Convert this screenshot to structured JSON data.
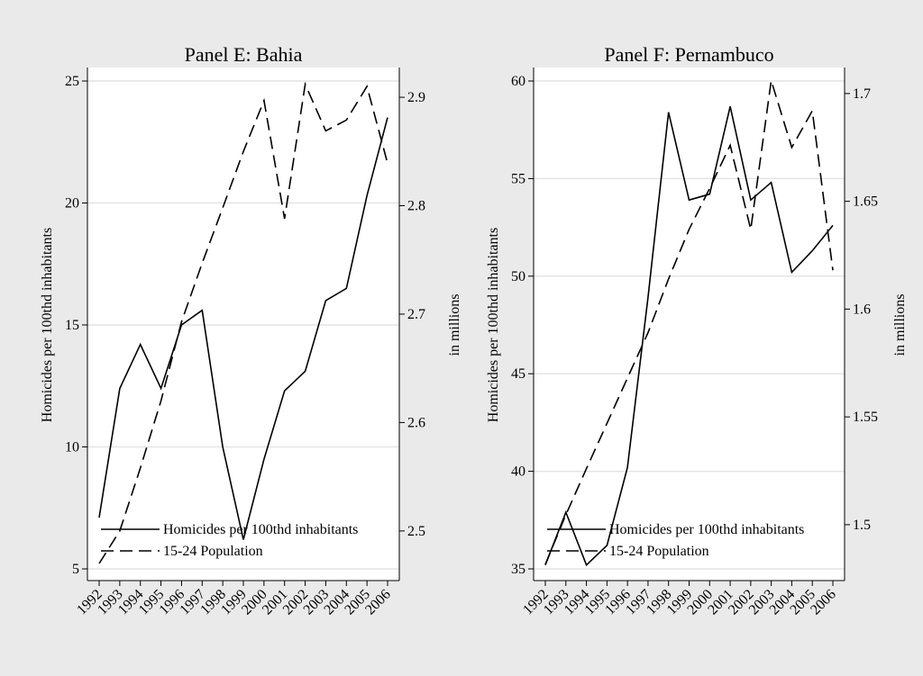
{
  "chart_data": [
    {
      "type": "line",
      "title": "Panel E: Bahia",
      "ylabel": "Homicides per 100thd inhabitants",
      "y2label": "in millions",
      "categories": [
        "1992",
        "1993",
        "1994",
        "1995",
        "1996",
        "1997",
        "1998",
        "1999",
        "2000",
        "2001",
        "2002",
        "2003",
        "2004",
        "2005",
        "2006"
      ],
      "series": [
        {
          "name": "Homicides per 100thd inhabitants",
          "color": "#000000",
          "line_style": "solid",
          "values": [
            7.1,
            12.4,
            14.2,
            12.4,
            15.0,
            15.6,
            10.0,
            6.2,
            9.5,
            12.3,
            13.1,
            16.0,
            16.5,
            20.3,
            23.5
          ]
        },
        {
          "name": "15-24 Population",
          "color": "#000000",
          "line_style": "dashed",
          "axis": "y2",
          "values": [
            2.47,
            2.5,
            2.558,
            2.62,
            2.693,
            2.747,
            2.798,
            2.85,
            2.897,
            2.788,
            2.912,
            2.869,
            2.879,
            2.91,
            2.839
          ]
        }
      ],
      "ylim": [
        5,
        25
      ],
      "yticks": [
        5,
        10,
        15,
        20,
        25
      ],
      "y2lim": [
        2.465,
        2.915
      ],
      "y2ticks": [
        {
          "value": 2.5,
          "label": "2.5"
        },
        2.6,
        2.7,
        2.8,
        2.9
      ],
      "grid": true,
      "legend": "lower left"
    },
    {
      "type": "line",
      "title": "Panel F: Pernambuco",
      "ylabel": "Homicides per 100thd inhabitants",
      "y2label": "in millions",
      "categories": [
        "1992",
        "1993",
        "1994",
        "1995",
        "1996",
        "1997",
        "1998",
        "1999",
        "2000",
        "2001",
        "2002",
        "2003",
        "2004",
        "2005",
        "2006"
      ],
      "series": [
        {
          "name": "Homicides per 100thd inhabitants",
          "color": "#000000",
          "line_style": "solid",
          "values": [
            35.2,
            37.9,
            35.2,
            36.2,
            40.2,
            48.9,
            58.4,
            53.9,
            54.2,
            58.7,
            53.9,
            54.8,
            50.2,
            51.3,
            52.6
          ]
        },
        {
          "name": "15-24 Population",
          "color": "#000000",
          "line_style": "dashed",
          "axis": "y2",
          "values": [
            1.4816,
            1.5046,
            1.526,
            1.547,
            1.568,
            1.589,
            1.614,
            1.637,
            1.656,
            1.676,
            1.637,
            1.706,
            1.675,
            1.692,
            1.618
          ]
        }
      ],
      "ylim": [
        35,
        60
      ],
      "yticks": [
        35,
        40,
        45,
        50,
        55,
        60
      ],
      "y2lim": [
        1.4795,
        1.7058
      ],
      "y2ticks": [
        1.5,
        1.55,
        1.6,
        1.65,
        1.7
      ],
      "grid": true,
      "legend": "lower left"
    }
  ]
}
